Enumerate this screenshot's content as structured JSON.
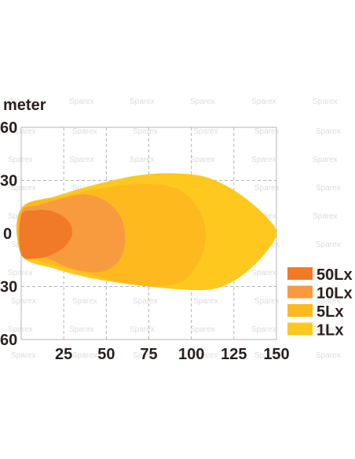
{
  "chart_data": {
    "type": "area",
    "title": "",
    "ylabel": "meter",
    "xlabel": "",
    "xlim": [
      0,
      150
    ],
    "ylim": [
      -60,
      60
    ],
    "x_ticks": [
      "25",
      "50",
      "75",
      "100",
      "125",
      "150"
    ],
    "y_ticks": [
      "60",
      "30",
      "0",
      "30",
      "60"
    ],
    "grid": true,
    "legend_position": "right",
    "watermark": "Sparex",
    "series": [
      {
        "name": "1Lx",
        "color": "#ffc81e",
        "outline": [
          [
            0,
            -12
          ],
          [
            20,
            -20
          ],
          [
            45,
            -26
          ],
          [
            75,
            -30
          ],
          [
            100,
            -32
          ],
          [
            115,
            -31
          ],
          [
            128,
            -25
          ],
          [
            140,
            -15
          ],
          [
            148,
            -5
          ],
          [
            150,
            0
          ],
          [
            148,
            5
          ],
          [
            138,
            15
          ],
          [
            124,
            25
          ],
          [
            108,
            32
          ],
          [
            90,
            34
          ],
          [
            70,
            33
          ],
          [
            45,
            28
          ],
          [
            20,
            21
          ],
          [
            0,
            14
          ]
        ]
      },
      {
        "name": "5Lx",
        "color": "#fdb91e",
        "outline": [
          [
            0,
            -10
          ],
          [
            20,
            -18
          ],
          [
            40,
            -23
          ],
          [
            60,
            -28
          ],
          [
            80,
            -30
          ],
          [
            95,
            -27
          ],
          [
            104,
            -17
          ],
          [
            108,
            -6
          ],
          [
            108,
            4
          ],
          [
            104,
            14
          ],
          [
            96,
            23
          ],
          [
            85,
            27
          ],
          [
            70,
            28
          ],
          [
            50,
            26
          ],
          [
            25,
            21
          ],
          [
            0,
            14
          ]
        ]
      },
      {
        "name": "10Lx",
        "color": "#f89a3e",
        "outline": [
          [
            0,
            -10
          ],
          [
            15,
            -14
          ],
          [
            30,
            -20
          ],
          [
            45,
            -22
          ],
          [
            55,
            -18
          ],
          [
            60,
            -10
          ],
          [
            61,
            0
          ],
          [
            58,
            10
          ],
          [
            50,
            18
          ],
          [
            38,
            22
          ],
          [
            25,
            20
          ],
          [
            10,
            16
          ],
          [
            0,
            12
          ]
        ]
      },
      {
        "name": "50Lx",
        "color": "#f07a28",
        "outline": [
          [
            0,
            -12
          ],
          [
            10,
            -14
          ],
          [
            18,
            -12
          ],
          [
            25,
            -8
          ],
          [
            29,
            -3
          ],
          [
            30,
            0
          ],
          [
            29,
            5
          ],
          [
            24,
            10
          ],
          [
            16,
            13
          ],
          [
            8,
            13
          ],
          [
            0,
            10
          ]
        ]
      }
    ]
  }
}
